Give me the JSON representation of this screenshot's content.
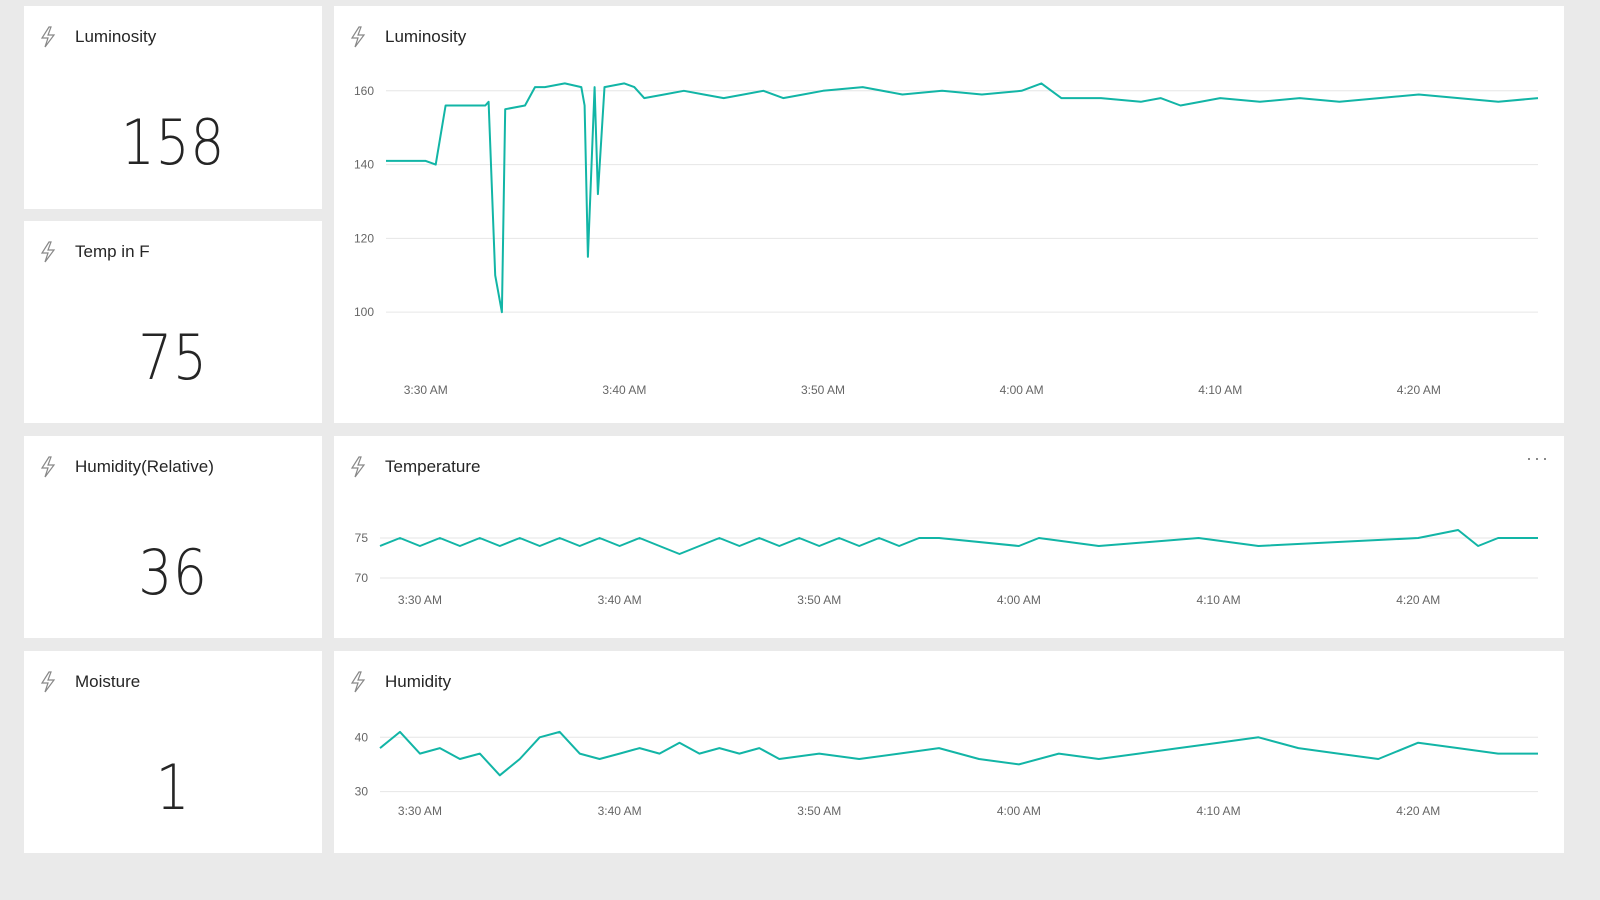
{
  "colors": {
    "line": "#12b5a6",
    "grid": "#e6e6e6",
    "tile_bg": "#ffffff",
    "page_bg": "#eaeaea"
  },
  "icons": {
    "tile_icon": "lightning-bolt-icon",
    "menu_icon": "ellipsis-icon"
  },
  "kpis": [
    {
      "title": "Luminosity",
      "value": "158"
    },
    {
      "title": "Temp in F",
      "value": "75"
    },
    {
      "title": "Humidity(Relative)",
      "value": "36"
    },
    {
      "title": "Moisture",
      "value": "1"
    }
  ],
  "charts": {
    "luminosity": {
      "title": "Luminosity"
    },
    "temperature": {
      "title": "Temperature",
      "menu": "···"
    },
    "humidity": {
      "title": "Humidity"
    }
  },
  "chart_data": [
    {
      "type": "line",
      "title": "Luminosity",
      "x_unit": "time",
      "x_ticks": [
        "3:30 AM",
        "3:40 AM",
        "3:50 AM",
        "4:00 AM",
        "4:10 AM",
        "4:20 AM"
      ],
      "y_ticks": [
        100,
        120,
        140,
        160
      ],
      "ylim": [
        93,
        164
      ],
      "xlim": [
        "3:28 AM",
        "4:26 AM"
      ],
      "grid": true,
      "legend": "none",
      "series": [
        {
          "x": [
            "3:28 AM",
            "3:30 AM",
            "3:30:30 AM",
            "3:31 AM",
            "3:33 AM",
            "3:33:10 AM",
            "3:33:30 AM",
            "3:33:50 AM",
            "3:34 AM",
            "3:35 AM",
            "3:35:30 AM",
            "3:36 AM",
            "3:37 AM",
            "3:37:50 AM",
            "3:38:00 AM",
            "3:38:10 AM",
            "3:38:30 AM",
            "3:38:40 AM",
            "3:39 AM",
            "3:40 AM",
            "3:40:30 AM",
            "3:41 AM",
            "3:42 AM",
            "3:43 AM",
            "3:44 AM",
            "3:45 AM",
            "3:46 AM",
            "3:47 AM",
            "3:48 AM",
            "3:49 AM",
            "3:50 AM",
            "3:52 AM",
            "3:54 AM",
            "3:56 AM",
            "3:58 AM",
            "4:00 AM",
            "4:01 AM",
            "4:02 AM",
            "4:04 AM",
            "4:06 AM",
            "4:07 AM",
            "4:08 AM",
            "4:10 AM",
            "4:12 AM",
            "4:14 AM",
            "4:16 AM",
            "4:18 AM",
            "4:20 AM",
            "4:22 AM",
            "4:24 AM",
            "4:26 AM"
          ],
          "y": [
            141,
            141,
            140,
            156,
            156,
            157,
            110,
            100,
            155,
            156,
            161,
            161,
            162,
            161,
            156,
            115,
            161,
            132,
            161,
            162,
            161,
            158,
            159,
            160,
            159,
            158,
            159,
            160,
            158,
            159,
            160,
            161,
            159,
            160,
            159,
            160,
            162,
            158,
            158,
            157,
            158,
            156,
            158,
            157,
            158,
            157,
            158,
            159,
            158,
            157,
            158
          ]
        }
      ]
    },
    {
      "type": "line",
      "title": "Temperature",
      "x_unit": "time",
      "x_ticks": [
        "3:30 AM",
        "3:40 AM",
        "3:50 AM",
        "4:00 AM",
        "4:10 AM",
        "4:20 AM"
      ],
      "y_ticks": [
        70,
        75
      ],
      "ylim": [
        69,
        78
      ],
      "xlim": [
        "3:28 AM",
        "4:26 AM"
      ],
      "grid": true,
      "legend": "none",
      "series": [
        {
          "x": [
            "3:28 AM",
            "3:29 AM",
            "3:30 AM",
            "3:31 AM",
            "3:32 AM",
            "3:33 AM",
            "3:34 AM",
            "3:35 AM",
            "3:36 AM",
            "3:37 AM",
            "3:38 AM",
            "3:39 AM",
            "3:40 AM",
            "3:41 AM",
            "3:42 AM",
            "3:43 AM",
            "3:44 AM",
            "3:45 AM",
            "3:46 AM",
            "3:47 AM",
            "3:48 AM",
            "3:49 AM",
            "3:50 AM",
            "3:51 AM",
            "3:52 AM",
            "3:53 AM",
            "3:54 AM",
            "3:55 AM",
            "3:56 AM",
            "4:00 AM",
            "4:01 AM",
            "4:04 AM",
            "4:09 AM",
            "4:12 AM",
            "4:20 AM",
            "4:22 AM",
            "4:23 AM",
            "4:24 AM",
            "4:26 AM"
          ],
          "y": [
            74,
            75,
            74,
            75,
            74,
            75,
            74,
            75,
            74,
            75,
            74,
            75,
            74,
            75,
            74,
            73,
            74,
            75,
            74,
            75,
            74,
            75,
            74,
            75,
            74,
            75,
            74,
            75,
            75,
            74,
            75,
            74,
            75,
            74,
            75,
            76,
            74,
            75,
            75
          ]
        }
      ]
    },
    {
      "type": "line",
      "title": "Humidity",
      "x_unit": "time",
      "x_ticks": [
        "3:30 AM",
        "3:40 AM",
        "3:50 AM",
        "4:00 AM",
        "4:10 AM",
        "4:20 AM"
      ],
      "y_ticks": [
        30,
        40
      ],
      "ylim": [
        29,
        43
      ],
      "xlim": [
        "3:28 AM",
        "4:26 AM"
      ],
      "grid": true,
      "legend": "none",
      "series": [
        {
          "x": [
            "3:28 AM",
            "3:29 AM",
            "3:30 AM",
            "3:31 AM",
            "3:32 AM",
            "3:33 AM",
            "3:34 AM",
            "3:35 AM",
            "3:36 AM",
            "3:37 AM",
            "3:38 AM",
            "3:39 AM",
            "3:40 AM",
            "3:41 AM",
            "3:42 AM",
            "3:43 AM",
            "3:44 AM",
            "3:45 AM",
            "3:46 AM",
            "3:47 AM",
            "3:48 AM",
            "3:50 AM",
            "3:52 AM",
            "3:54 AM",
            "3:56 AM",
            "3:58 AM",
            "4:00 AM",
            "4:02 AM",
            "4:04 AM",
            "4:06 AM",
            "4:08 AM",
            "4:10 AM",
            "4:12 AM",
            "4:14 AM",
            "4:16 AM",
            "4:18 AM",
            "4:20 AM",
            "4:22 AM",
            "4:24 AM",
            "4:26 AM"
          ],
          "y": [
            38,
            41,
            37,
            38,
            36,
            37,
            33,
            36,
            40,
            41,
            37,
            36,
            37,
            38,
            37,
            39,
            37,
            38,
            37,
            38,
            36,
            37,
            36,
            37,
            38,
            36,
            35,
            37,
            36,
            37,
            38,
            39,
            40,
            38,
            37,
            36,
            39,
            38,
            37,
            37
          ]
        }
      ]
    }
  ]
}
